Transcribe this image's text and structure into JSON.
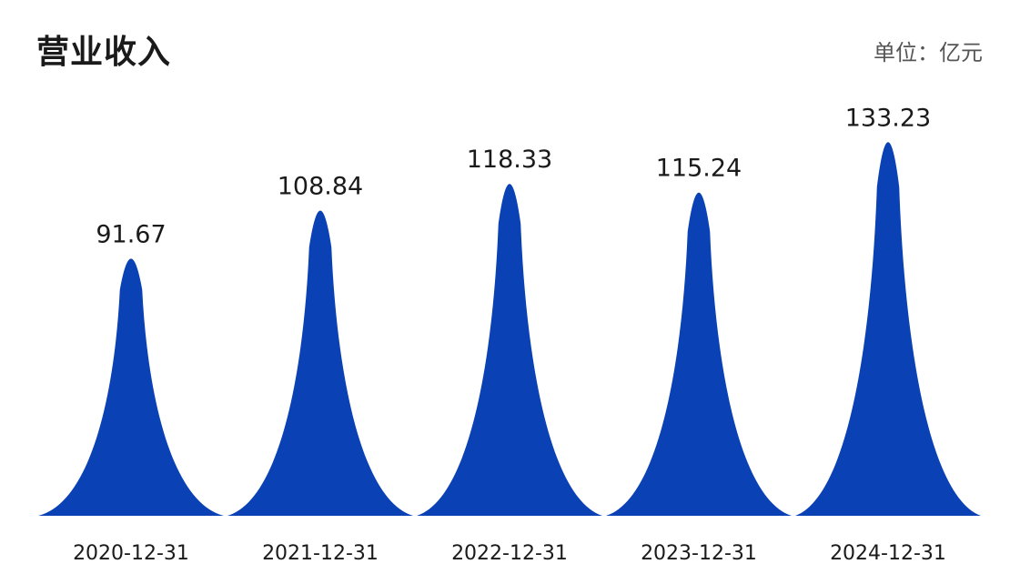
{
  "header": {
    "title": "营业收入",
    "unit": "单位：亿元"
  },
  "colors": {
    "bar": "#0a41b5",
    "background": "#ffffff"
  },
  "chart_data": {
    "type": "bar",
    "shape": "peak",
    "categories": [
      "2020-12-31",
      "2021-12-31",
      "2022-12-31",
      "2023-12-31",
      "2024-12-31"
    ],
    "values": [
      91.67,
      108.84,
      118.33,
      115.24,
      133.23
    ],
    "data_labels": [
      "91.67",
      "108.84",
      "118.33",
      "115.24",
      "133.23"
    ],
    "title": "营业收入",
    "xlabel": "",
    "ylabel": "",
    "unit": "亿元",
    "ylim": [
      0,
      145
    ],
    "grid": false,
    "legend": "none"
  }
}
